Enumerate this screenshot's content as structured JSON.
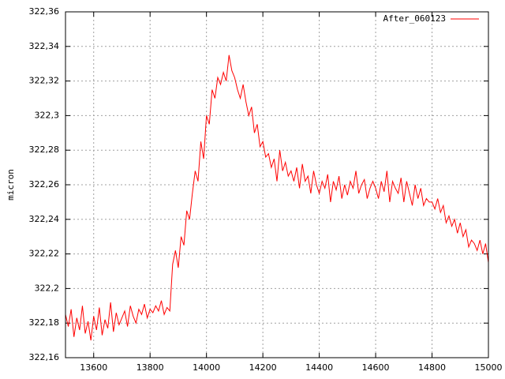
{
  "chart_data": {
    "type": "line",
    "y_label": "micron",
    "xlim": [
      13500,
      15000
    ],
    "xticks": [
      13600,
      13800,
      14000,
      14200,
      14400,
      14600,
      14800,
      15000
    ],
    "ylim": [
      322.16,
      322.36
    ],
    "yticks": [
      {
        "value": 322.16,
        "label": "322,16"
      },
      {
        "value": 322.18,
        "label": "322,18"
      },
      {
        "value": 322.2,
        "label": "322,2"
      },
      {
        "value": 322.22,
        "label": "322,22"
      },
      {
        "value": 322.24,
        "label": "322,24"
      },
      {
        "value": 322.26,
        "label": "322,26"
      },
      {
        "value": 322.28,
        "label": "322,28"
      },
      {
        "value": 322.3,
        "label": "322,3"
      },
      {
        "value": 322.32,
        "label": "322,32"
      },
      {
        "value": 322.34,
        "label": "322,34"
      },
      {
        "value": 322.36,
        "label": "322,36"
      }
    ],
    "grid": true,
    "legend": "top-right",
    "x": [
      13500,
      13510,
      13520,
      13530,
      13540,
      13550,
      13560,
      13570,
      13580,
      13590,
      13600,
      13610,
      13620,
      13630,
      13640,
      13650,
      13660,
      13670,
      13680,
      13690,
      13700,
      13710,
      13720,
      13730,
      13740,
      13750,
      13760,
      13770,
      13780,
      13790,
      13800,
      13810,
      13820,
      13830,
      13840,
      13850,
      13860,
      13870,
      13880,
      13890,
      13900,
      13910,
      13920,
      13930,
      13940,
      13950,
      13960,
      13970,
      13980,
      13990,
      14000,
      14010,
      14020,
      14030,
      14040,
      14050,
      14060,
      14070,
      14080,
      14090,
      14100,
      14110,
      14120,
      14130,
      14140,
      14150,
      14160,
      14170,
      14180,
      14190,
      14200,
      14210,
      14220,
      14230,
      14240,
      14250,
      14260,
      14270,
      14280,
      14290,
      14300,
      14310,
      14320,
      14330,
      14340,
      14350,
      14360,
      14370,
      14380,
      14390,
      14400,
      14410,
      14420,
      14430,
      14440,
      14450,
      14460,
      14470,
      14480,
      14490,
      14500,
      14510,
      14520,
      14530,
      14540,
      14550,
      14560,
      14570,
      14580,
      14590,
      14600,
      14610,
      14620,
      14630,
      14640,
      14650,
      14660,
      14670,
      14680,
      14690,
      14700,
      14710,
      14720,
      14730,
      14740,
      14750,
      14760,
      14770,
      14780,
      14790,
      14800,
      14810,
      14820,
      14830,
      14840,
      14850,
      14860,
      14870,
      14880,
      14890,
      14900,
      14910,
      14920,
      14930,
      14940,
      14950,
      14960,
      14970,
      14980,
      14990,
      15000
    ],
    "series": [
      {
        "name": "After_060123",
        "color": "#ff0000",
        "values": [
          322.185,
          322.178,
          322.188,
          322.172,
          322.183,
          322.176,
          322.19,
          322.174,
          322.181,
          322.17,
          322.184,
          322.176,
          322.189,
          322.173,
          322.182,
          322.177,
          322.192,
          322.175,
          322.186,
          322.179,
          322.183,
          322.187,
          322.178,
          322.19,
          322.184,
          322.18,
          322.188,
          322.185,
          322.191,
          322.183,
          322.188,
          322.186,
          322.19,
          322.187,
          322.193,
          322.185,
          322.189,
          322.187,
          322.214,
          322.222,
          322.212,
          322.23,
          322.225,
          322.245,
          322.24,
          322.255,
          322.268,
          322.262,
          322.285,
          322.275,
          322.3,
          322.295,
          322.315,
          322.31,
          322.322,
          322.318,
          322.325,
          322.32,
          322.335,
          322.326,
          322.322,
          322.315,
          322.31,
          322.318,
          322.308,
          322.3,
          322.305,
          322.29,
          322.295,
          322.282,
          322.285,
          322.276,
          322.278,
          322.27,
          322.275,
          322.262,
          322.28,
          322.268,
          322.273,
          322.265,
          322.268,
          322.262,
          322.27,
          322.258,
          322.272,
          322.262,
          322.265,
          322.255,
          322.268,
          322.26,
          322.255,
          322.262,
          322.258,
          322.266,
          322.25,
          322.262,
          322.257,
          322.265,
          322.252,
          322.26,
          322.254,
          322.262,
          322.258,
          322.268,
          322.255,
          322.26,
          322.263,
          322.252,
          322.258,
          322.262,
          322.258,
          322.252,
          322.262,
          322.256,
          322.268,
          322.25,
          322.262,
          322.258,
          322.255,
          322.264,
          322.25,
          322.262,
          322.255,
          322.248,
          322.26,
          322.252,
          322.258,
          322.248,
          322.252,
          322.25,
          322.25,
          322.246,
          322.252,
          322.244,
          322.248,
          322.238,
          322.242,
          322.236,
          322.24,
          322.232,
          322.238,
          322.23,
          322.234,
          322.224,
          322.228,
          322.226,
          322.222,
          322.228,
          322.22,
          322.226,
          322.215
        ]
      }
    ]
  }
}
